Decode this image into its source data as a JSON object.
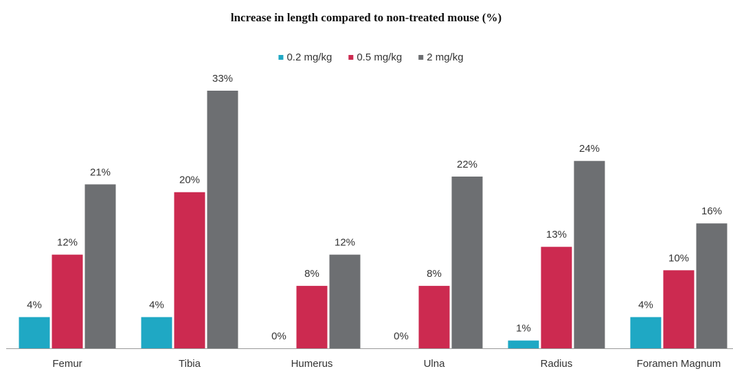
{
  "chart_data": {
    "type": "bar",
    "title": "lncrease in length compared to non-treated mouse (%)",
    "categories": [
      "Femur",
      "Tibia",
      "Humerus",
      "Ulna",
      "Radius",
      "Foramen Magnum"
    ],
    "series": [
      {
        "name": "0.2 mg/kg",
        "color": "#1fa8c4",
        "values": [
          4,
          4,
          0,
          0,
          1,
          4
        ],
        "value_labels": [
          "4%",
          "4%",
          "0%",
          "0%",
          "1%",
          "4%"
        ]
      },
      {
        "name": "0.5 mg/kg",
        "color": "#cc2a50",
        "values": [
          12,
          20,
          8,
          8,
          13,
          10
        ],
        "value_labels": [
          "12%",
          "20%",
          "8%",
          "8%",
          "13%",
          "10%"
        ]
      },
      {
        "name": "2 mg/kg",
        "color": "#6d6f72",
        "values": [
          21,
          33,
          12,
          22,
          24,
          16
        ],
        "value_labels": [
          "21%",
          "33%",
          "12%",
          "22%",
          "24%",
          "16%"
        ]
      }
    ],
    "legend": "top"
  }
}
